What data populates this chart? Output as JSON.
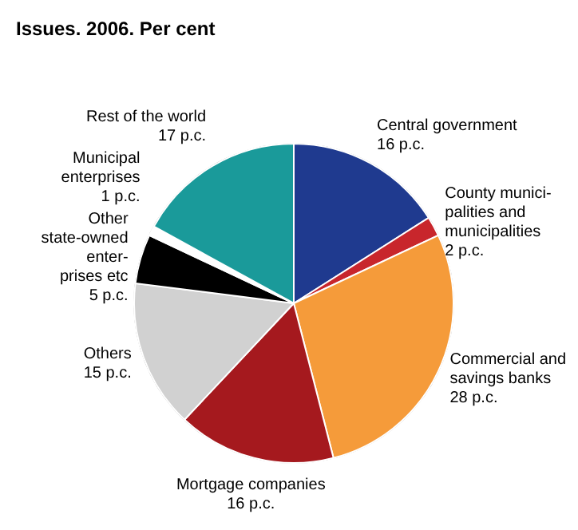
{
  "chart_data": {
    "type": "pie",
    "title": "Issues. 2006. Per cent",
    "categories": [
      "Central government",
      "County munici-\npalities and\nmunicipalities",
      "Commercial and\nsavings banks",
      "Mortgage companies",
      "Others",
      "Other\nstate-owned\nenter-\nprises etc",
      "Municipal\nenterprises",
      "Rest of the world"
    ],
    "values": [
      16,
      2,
      28,
      16,
      15,
      5,
      1,
      17
    ],
    "value_labels": [
      "16 p.c.",
      "2 p.c.",
      "28 p.c.",
      "16 p.c.",
      "15 p.c.",
      "5 p.c.",
      "1 p.c.",
      "17 p.c."
    ],
    "colors": [
      "#1f3a8f",
      "#c8262c",
      "#f59b3a",
      "#a5191e",
      "#d1d1d1",
      "#000000",
      "#ffffff",
      "#1a9a9a"
    ]
  }
}
